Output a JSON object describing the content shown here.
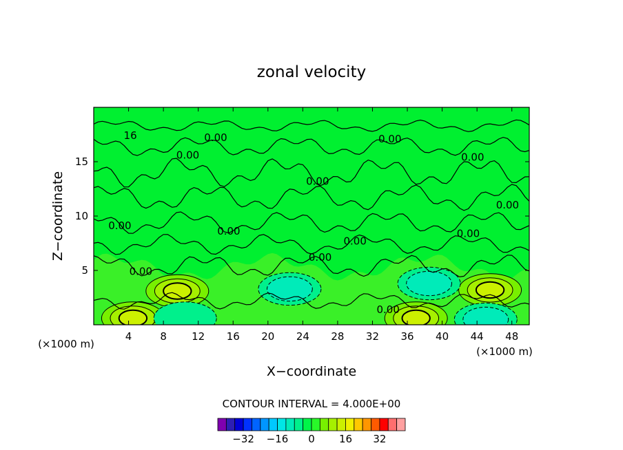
{
  "chart_data": {
    "type": "heatmap",
    "title": "zonal velocity",
    "xlabel": "X−coordinate",
    "ylabel": "Z−coordinate",
    "x_unit": "(×1000 m)",
    "y_unit": "(×1000 m)",
    "xlim": [
      0,
      50
    ],
    "ylim": [
      0,
      20
    ],
    "x_ticks": [
      4,
      8,
      12,
      16,
      20,
      24,
      28,
      32,
      36,
      40,
      44,
      48
    ],
    "y_ticks": [
      5,
      10,
      15
    ],
    "grid": false,
    "contour_interval_text": "CONTOUR INTERVAL = 4.000E+00",
    "contour_interval": 4.0,
    "contour_labels": [
      {
        "text": "0.00",
        "x": 14.0,
        "z": 17.2
      },
      {
        "text": "0.00",
        "x": 10.8,
        "z": 15.6
      },
      {
        "text": "0.00",
        "x": 34.0,
        "z": 17.1
      },
      {
        "text": "0.00",
        "x": 43.5,
        "z": 15.4
      },
      {
        "text": "0.00",
        "x": 25.7,
        "z": 13.2
      },
      {
        "text": "0.00",
        "x": 47.5,
        "z": 11.0
      },
      {
        "text": "0.00",
        "x": 3.0,
        "z": 9.1
      },
      {
        "text": "0.00",
        "x": 15.5,
        "z": 8.6
      },
      {
        "text": "0.00",
        "x": 30.0,
        "z": 7.7
      },
      {
        "text": "0.00",
        "x": 43.0,
        "z": 8.4
      },
      {
        "text": "0.00",
        "x": 26.0,
        "z": 6.2
      },
      {
        "text": "0.00",
        "x": 5.4,
        "z": 4.9
      },
      {
        "text": "0.00",
        "x": 33.8,
        "z": 1.4
      },
      {
        "text": "16",
        "x": 4.2,
        "z": 17.4
      }
    ],
    "features": [
      {
        "kind": "positive",
        "level": 16,
        "x": 9.6,
        "z": 3.1
      },
      {
        "kind": "positive",
        "level": 16,
        "x": 45.5,
        "z": 3.2
      },
      {
        "kind": "positive",
        "level": 12,
        "x": 4.5,
        "z": 0.6
      },
      {
        "kind": "positive",
        "level": 12,
        "x": 37.0,
        "z": 0.6
      },
      {
        "kind": "negative",
        "level": -8,
        "x": 22.5,
        "z": 3.3
      },
      {
        "kind": "negative",
        "level": -8,
        "x": 38.5,
        "z": 3.8
      },
      {
        "kind": "negative",
        "level": -4,
        "x": 10.5,
        "z": 0.6
      },
      {
        "kind": "negative",
        "level": -8,
        "x": 45.0,
        "z": 0.5
      }
    ]
  },
  "colorbar": {
    "levels": [
      -40,
      -36,
      -32,
      -28,
      -24,
      -20,
      -16,
      -12,
      -8,
      -4,
      0,
      4,
      8,
      12,
      16,
      20,
      24,
      28,
      32,
      36,
      40
    ],
    "colors": [
      "#7f00b0",
      "#2d1eb4",
      "#0000d8",
      "#0032ff",
      "#0064ff",
      "#0096ff",
      "#00c8ff",
      "#00e6e6",
      "#00ebb9",
      "#00f08c",
      "#00f548",
      "#29f829",
      "#78f000",
      "#a6f000",
      "#ccf000",
      "#f0f000",
      "#ffc800",
      "#ff9600",
      "#ff5a00",
      "#ff0000",
      "#ff6e6e",
      "#ffa0a0"
    ],
    "tick_labels": [
      "−32",
      "−16",
      "0",
      "16",
      "32"
    ],
    "tick_values": [
      -32,
      -16,
      0,
      16,
      32
    ]
  },
  "colors": {
    "background_fill": "#00f030",
    "light_band": "#3af028",
    "positive_fill_1": "#78f000",
    "positive_fill_2": "#a6f000",
    "positive_fill_3": "#ccf000",
    "negative_fill_1": "#00f08c",
    "negative_fill_2": "#00ebb9",
    "negative_fill_3": "#00e6e6"
  }
}
